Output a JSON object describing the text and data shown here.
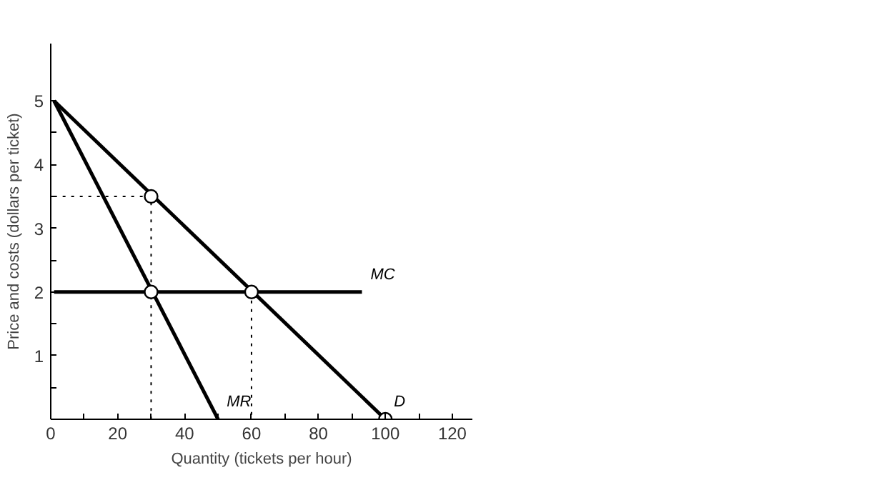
{
  "chart_data": {
    "type": "line",
    "xlabel": "Quantity (tickets per hour)",
    "ylabel": "Price and costs (dollars per ticket)",
    "xlim": [
      0,
      126
    ],
    "ylim": [
      0,
      5.9
    ],
    "xticks": [
      0,
      {
        "value": 10,
        "label": null
      },
      20,
      {
        "value": 30,
        "label": null
      },
      40,
      {
        "value": 50,
        "label": null
      },
      60,
      {
        "value": 70,
        "label": null
      },
      80,
      {
        "value": 90,
        "label": null
      },
      100,
      {
        "value": 110,
        "label": null
      },
      120
    ],
    "yticks": [
      {
        "value": 0.5,
        "label": null
      },
      1,
      {
        "value": 1.5,
        "label": null
      },
      2,
      {
        "value": 2.5,
        "label": null
      },
      3,
      {
        "value": 3.5,
        "label": null
      },
      4,
      {
        "value": 4.5,
        "label": null
      },
      5
    ],
    "grid": false,
    "line_style": "solid",
    "marker": "none",
    "series": [
      {
        "name": "D",
        "color": "#000000",
        "x": [
          1,
          100
        ],
        "values": [
          5,
          0
        ]
      },
      {
        "name": "MR",
        "color": "#000000",
        "x": [
          1,
          50
        ],
        "values": [
          5,
          0
        ]
      },
      {
        "name": "MC",
        "color": "#000000",
        "x": [
          1,
          93
        ],
        "values": [
          2,
          2
        ]
      },
      {
        "color": "#000000",
        "line_style": "dotted",
        "x": [
          1,
          30,
          30
        ],
        "values": [
          3.5,
          3.5,
          0
        ]
      },
      {
        "color": "#000000",
        "line_style": "dotted",
        "x": [
          60,
          60
        ],
        "values": [
          2,
          0
        ]
      },
      {
        "type": "scatter",
        "color": "#000000",
        "marker": "circle",
        "x": [
          30,
          30,
          60,
          100
        ],
        "values": [
          3.5,
          2,
          2,
          0
        ]
      }
    ]
  }
}
